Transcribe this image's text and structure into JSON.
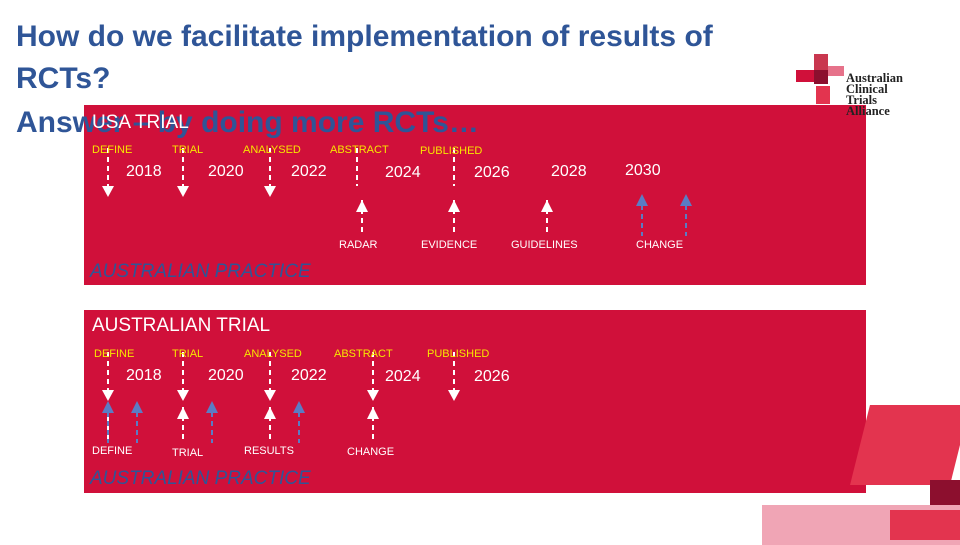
{
  "title": {
    "line1": "How do we facilitate implementation of results of",
    "line2": "RCTs?",
    "line3": "Answer – by doing more RCTs…"
  },
  "logo": {
    "line1": "Australian",
    "line2": "Clinical",
    "line3": "Trials",
    "line4": "Alliance"
  },
  "usa_panel": {
    "heading": "USA TRIAL",
    "stages": [
      "DEFINE",
      "TRIAL",
      "ANALYSED",
      "ABSTRACT",
      "PUBLISHED"
    ],
    "years": [
      "2018",
      "2020",
      "2022",
      "2024",
      "2026",
      "2028",
      "2030"
    ],
    "bottom_labels": [
      "RADAR",
      "EVIDENCE",
      "GUIDELINES",
      "CHANGE"
    ],
    "footer": "AUSTRALIAN PRACTICE"
  },
  "aus_panel": {
    "heading": "AUSTRALIAN TRIAL",
    "stages": [
      "DEFINE",
      "TRIAL",
      "ANALYSED",
      "ABSTRACT",
      "PUBLISHED"
    ],
    "years": [
      "2018",
      "2020",
      "2022",
      "2024",
      "2026"
    ],
    "bottom_labels": [
      "DEFINE",
      "TRIAL",
      "RESULTS",
      "CHANGE"
    ],
    "footer": "AUSTRALIAN PRACTICE"
  },
  "colors": {
    "panel": "#d0103a",
    "title": "#2f5597",
    "stage_label": "#f7e600",
    "arrow_up": "#5b7cc4"
  }
}
